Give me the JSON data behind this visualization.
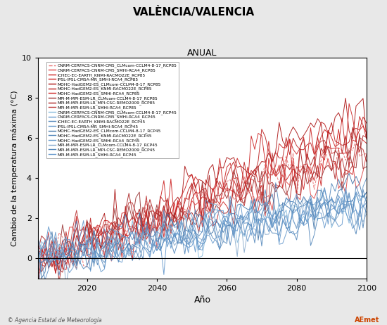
{
  "title": "VALÈNCIA/VALENCIA",
  "subtitle": "ANUAL",
  "ylabel": "Cambio de la temperatura máxima (°C)",
  "xlabel": "Año",
  "xlim": [
    2006,
    2100
  ],
  "ylim": [
    -1,
    10
  ],
  "yticks": [
    0,
    2,
    4,
    6,
    8,
    10
  ],
  "xticks": [
    2020,
    2040,
    2060,
    2080,
    2100
  ],
  "rcp85_color": "#cc2222",
  "rcp45_color": "#5599cc",
  "rcp85_labels": [
    "CNRM-CERFACS-CNRM-CM5_CLMcom-CCLM4-8-17_RCP85",
    "CNRM-CERFACS-CNRM-CM5_SMHI-RCA4_RCP85",
    "ICHEC-EC-EARTH_KNMI-RACMO22E_RCP85",
    "IPSL-IPSL-CM5A-MR_SMHI-RCA4_RCP85",
    "MOHC-HadGEM2-ES_CLMcom-CCLM4-8-17_RCP85",
    "MOHC-HadGEM2-ES_KNMI-RACMO22E_RCP85",
    "MOHC-HadGEM2-ES_SMHI-RCA4_RCP85",
    "MPI-M-MPI-ESM-LR_CLMcom-CCLM4-8-17_RCP85",
    "MPI-M-MPI-ESM-LR_MPI-CSC-REMO2009_RCP85",
    "MPI-M-MPI-ESM-LR_SMHI-RCA4_RCP85"
  ],
  "rcp45_labels": [
    "CNRM-CERFACS-CNRM-CM5_CLMcom-CCLM4-8-17_RCP45",
    "CNRM-CERFACS-CNRM-CM5_SMHI-RCA4_RCP45",
    "ICHEC-EC-EARTH_KNMI-RACMO22E_RCP45",
    "IPSL-IPSL-CM5A-MR_SMHI-RCA4_RCP45",
    "MOHC-HadGEM2-ES_CLMcom-CCLM4-8-17_RCP45",
    "MOHC-HadGEM2-ES_KNMI-RACMO22E_RCP45",
    "MOHC-HadGEM2-ES_SMHI-RCA4_RCP45",
    "MPI-M-MPI-ESM-LR_CLMcom-CCLM4-8-17_RCP45",
    "MPI-M-MPI-ESM-LR_MPI-CSC-REMO2009_RCP45",
    "MPI-M-MPI-ESM-LR_SMHI-RCA4_RCP45"
  ],
  "rcp85_finals": [
    5.5,
    4.8,
    5.2,
    6.2,
    7.5,
    6.8,
    7.0,
    5.0,
    5.8,
    5.5
  ],
  "rcp45_finals": [
    2.8,
    2.5,
    2.2,
    3.0,
    3.5,
    3.2,
    3.0,
    2.5,
    2.8,
    2.6
  ],
  "start_year": 2006,
  "end_year": 2100,
  "noise_scale_85": 0.75,
  "noise_scale_45": 0.65,
  "background_color": "#e8e8e8",
  "plot_background": "#ffffff"
}
